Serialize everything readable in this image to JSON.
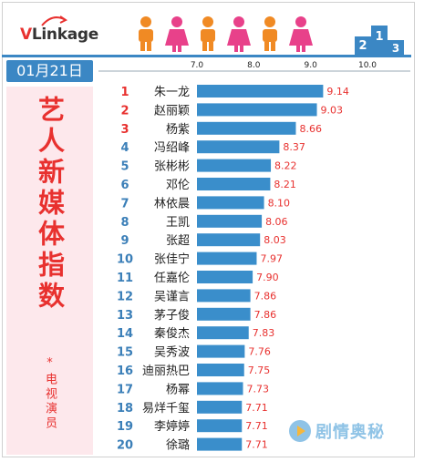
{
  "header": {
    "logo_v": "V",
    "logo_rest": "Linkage",
    "date": "01月21日"
  },
  "side_panel": {
    "title": "艺人新媒体指数",
    "subtitle": "*电视演员"
  },
  "watermark": {
    "text": "剧情奥秘"
  },
  "colors": {
    "accent_blue": "#3b87c4",
    "bar_blue": "#3a8ecb",
    "rank_red": "#e8312f",
    "rank_blue": "#3b7fb8",
    "panel_pink": "#fde8ec"
  },
  "chart_data": {
    "type": "bar",
    "orientation": "horizontal",
    "x_ticks": [
      "7.0",
      "8.0",
      "9.0",
      "10.0"
    ],
    "xlim": [
      7.0,
      10.0
    ],
    "grid": false,
    "ranks": [
      "1",
      "2",
      "3",
      "4",
      "5",
      "6",
      "7",
      "8",
      "9",
      "10",
      "11",
      "12",
      "13",
      "14",
      "15",
      "16",
      "17",
      "18",
      "19",
      "20"
    ],
    "categories": [
      "朱一龙",
      "赵丽颖",
      "杨紫",
      "冯绍峰",
      "张彬彬",
      "邓伦",
      "林依晨",
      "王凯",
      "张超",
      "张佳宁",
      "任嘉伦",
      "吴谨言",
      "茅子俊",
      "秦俊杰",
      "吴秀波",
      "迪丽热巴",
      "杨幂",
      "易烊千玺",
      "李婷婷",
      "徐璐"
    ],
    "values": [
      9.14,
      9.03,
      8.66,
      8.37,
      8.22,
      8.21,
      8.1,
      8.06,
      8.03,
      7.97,
      7.9,
      7.86,
      7.86,
      7.83,
      7.76,
      7.75,
      7.73,
      7.71,
      7.71,
      7.71
    ],
    "value_labels": [
      "9.14",
      "9.03",
      "8.66",
      "8.37",
      "8.22",
      "8.21",
      "8.10",
      "8.06",
      "8.03",
      "7.97",
      "7.90",
      "7.86",
      "7.86",
      "7.83",
      "7.76",
      "7.75",
      "7.73",
      "7.71",
      "7.71",
      "7.71"
    ]
  }
}
